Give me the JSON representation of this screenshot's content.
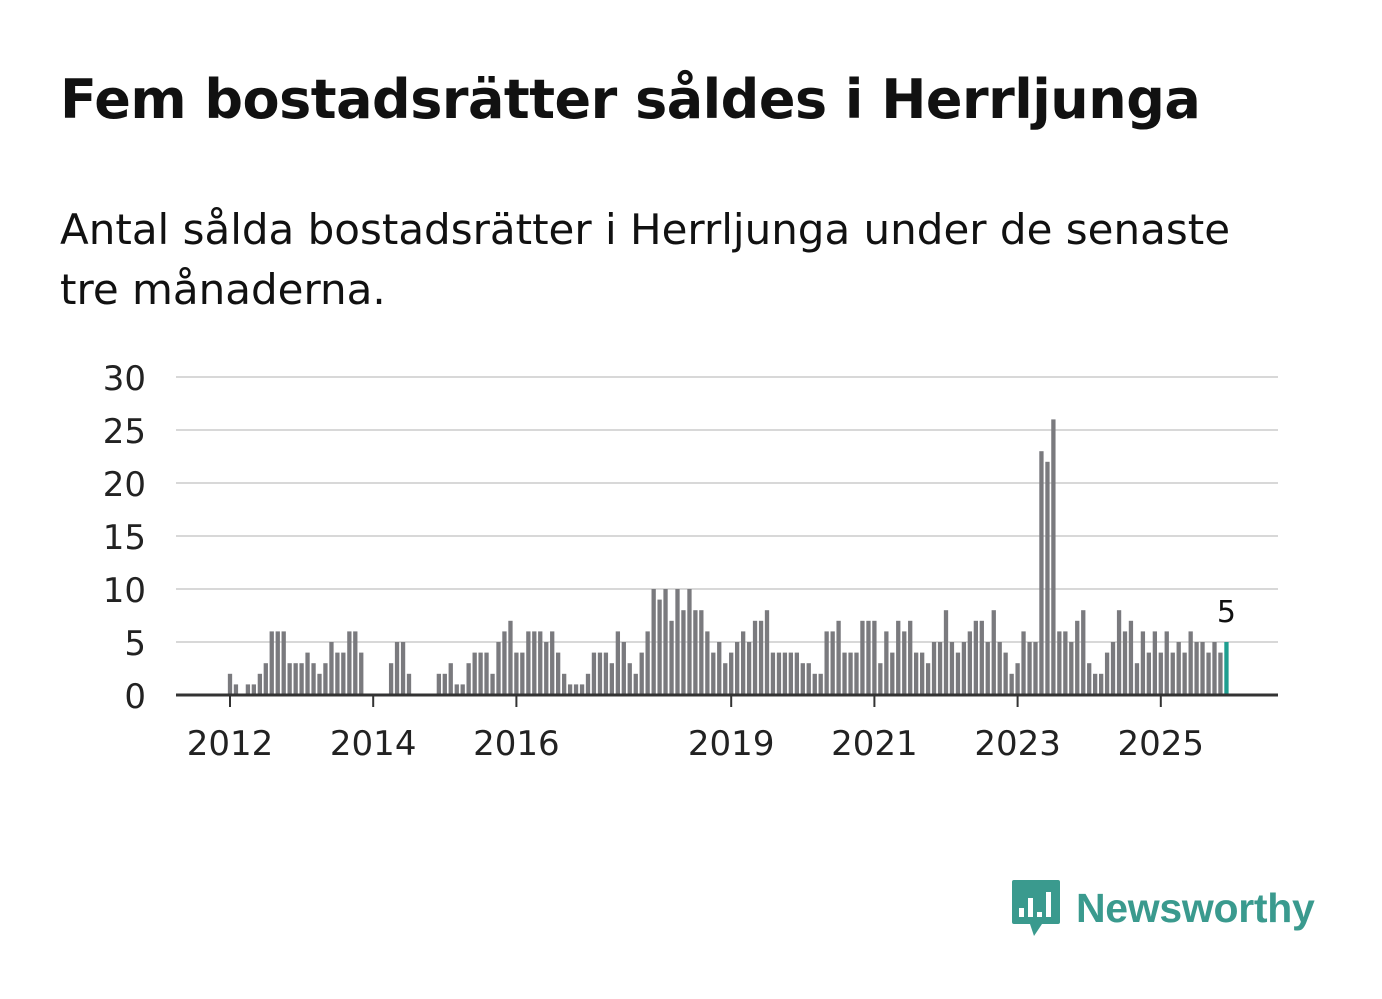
{
  "header": {
    "title": "Fem bostadsrätter såldes i Herrljunga",
    "subtitle": "Antal sålda bostadsrätter i Herrljunga under de senaste tre månaderna."
  },
  "brand": {
    "name": "Newsworthy",
    "color": "#3a9a8e",
    "icon": "newsworthy-logo-icon"
  },
  "chart_data": {
    "type": "bar",
    "title": "Fem bostadsrätter såldes i Herrljunga",
    "subtitle": "Antal sålda bostadsrätter i Herrljunga under de senaste tre månaderna.",
    "xlabel": "",
    "ylabel": "",
    "ylim": [
      0,
      30
    ],
    "yticks": [
      0,
      5,
      10,
      15,
      20,
      25,
      30
    ],
    "xticks": [
      "2012",
      "2014",
      "2016",
      "2019",
      "2021",
      "2023",
      "2025"
    ],
    "grid": true,
    "bar_color": "#7a7a7e",
    "highlight_color": "#1f9e90",
    "series": [
      {
        "name": "Sålda bostadsrätter",
        "x": [
          2012.0,
          2012.083,
          2012.167,
          2012.25,
          2012.333,
          2012.417,
          2012.5,
          2012.583,
          2012.667,
          2012.75,
          2012.833,
          2012.917,
          2013.0,
          2013.083,
          2013.167,
          2013.25,
          2013.333,
          2013.417,
          2013.5,
          2013.583,
          2013.667,
          2013.75,
          2013.833,
          2013.917,
          2014.0,
          2014.083,
          2014.167,
          2014.25,
          2014.333,
          2014.417,
          2014.5,
          2014.583,
          2014.667,
          2014.75,
          2014.833,
          2014.917,
          2015.0,
          2015.083,
          2015.167,
          2015.25,
          2015.333,
          2015.417,
          2015.5,
          2015.583,
          2015.667,
          2015.75,
          2015.833,
          2015.917,
          2016.0,
          2016.083,
          2016.167,
          2016.25,
          2016.333,
          2016.417,
          2016.5,
          2016.583,
          2016.667,
          2016.75,
          2016.833,
          2016.917,
          2017.0,
          2017.083,
          2017.167,
          2017.25,
          2017.333,
          2017.417,
          2017.5,
          2017.583,
          2017.667,
          2017.75,
          2017.833,
          2017.917,
          2018.0,
          2018.083,
          2018.167,
          2018.25,
          2018.333,
          2018.417,
          2018.5,
          2018.583,
          2018.667,
          2018.75,
          2018.833,
          2018.917,
          2019.0,
          2019.083,
          2019.167,
          2019.25,
          2019.333,
          2019.417,
          2019.5,
          2019.583,
          2019.667,
          2019.75,
          2019.833,
          2019.917,
          2020.0,
          2020.083,
          2020.167,
          2020.25,
          2020.333,
          2020.417,
          2020.5,
          2020.583,
          2020.667,
          2020.75,
          2020.833,
          2020.917,
          2021.0,
          2021.083,
          2021.167,
          2021.25,
          2021.333,
          2021.417,
          2021.5,
          2021.583,
          2021.667,
          2021.75,
          2021.833,
          2021.917,
          2022.0,
          2022.083,
          2022.167,
          2022.25,
          2022.333,
          2022.417,
          2022.5,
          2022.583,
          2022.667,
          2022.75,
          2022.833,
          2022.917,
          2023.0,
          2023.083,
          2023.167,
          2023.25,
          2023.333,
          2023.417,
          2023.5,
          2023.583,
          2023.667,
          2023.75,
          2023.833,
          2023.917,
          2024.0,
          2024.083,
          2024.167,
          2024.25,
          2024.333,
          2024.417,
          2024.5,
          2024.583,
          2024.667,
          2024.75,
          2024.833,
          2024.917,
          2025.0,
          2025.083,
          2025.167,
          2025.25,
          2025.333,
          2025.417,
          2025.5,
          2025.583,
          2025.667,
          2025.75,
          2025.833,
          2025.917
        ],
        "values": [
          2,
          1,
          0,
          1,
          1,
          2,
          3,
          6,
          6,
          6,
          3,
          3,
          3,
          4,
          3,
          2,
          3,
          5,
          4,
          4,
          6,
          6,
          4,
          0,
          0,
          0,
          0,
          3,
          5,
          5,
          2,
          0,
          0,
          0,
          0,
          2,
          2,
          3,
          1,
          1,
          3,
          4,
          4,
          4,
          2,
          5,
          6,
          7,
          4,
          4,
          6,
          6,
          6,
          5,
          6,
          4,
          2,
          1,
          1,
          1,
          2,
          4,
          4,
          4,
          3,
          6,
          5,
          3,
          2,
          4,
          6,
          10,
          9,
          10,
          7,
          10,
          8,
          10,
          8,
          8,
          6,
          4,
          5,
          3,
          4,
          5,
          6,
          5,
          7,
          7,
          8,
          4,
          4,
          4,
          4,
          4,
          3,
          3,
          2,
          2,
          6,
          6,
          7,
          4,
          4,
          4,
          7,
          7,
          7,
          3,
          6,
          4,
          7,
          6,
          7,
          4,
          4,
          3,
          5,
          5,
          8,
          5,
          4,
          5,
          6,
          7,
          7,
          5,
          8,
          5,
          4,
          2,
          3,
          6,
          5,
          5,
          23,
          22,
          26,
          6,
          6,
          5,
          7,
          8,
          3,
          2,
          2,
          4,
          5,
          8,
          6,
          7,
          3,
          6,
          4,
          6,
          4,
          6,
          4,
          5,
          4,
          6,
          5,
          5,
          4,
          5,
          4,
          5
        ]
      }
    ],
    "highlight_index": 167,
    "annotations": [
      {
        "label": "5",
        "target": "last bar"
      }
    ]
  }
}
